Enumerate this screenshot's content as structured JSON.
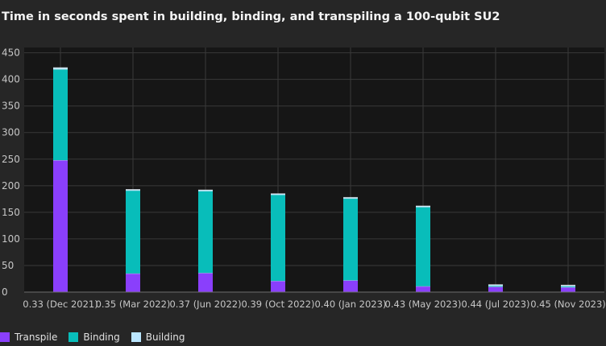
{
  "chart_data": {
    "type": "bar",
    "stacked": true,
    "title": "Time in seconds spent in building, binding, and transpiling a 100-qubit SU2",
    "xlabel": "",
    "ylabel": "",
    "ylim": [
      0,
      460
    ],
    "yticks": [
      0,
      50,
      100,
      150,
      200,
      250,
      300,
      350,
      400,
      450
    ],
    "categories": [
      "0.33 (Dec 2021)",
      "0.35 (Mar 2022)",
      "0.37 (Jun 2022)",
      "0.39 (Oct 2022)",
      "0.40 (Jan 2023)",
      "0.43 (May 2023)",
      "0.44 (Jul 2023)",
      "0.45 (Nov 2023)"
    ],
    "series": [
      {
        "name": "Transpile",
        "color": "#8a3ffc",
        "values": [
          248,
          35,
          36,
          21,
          22,
          11,
          10,
          9
        ]
      },
      {
        "name": "Binding",
        "color": "#08bdba",
        "values": [
          171,
          156,
          154,
          162,
          154,
          149,
          2,
          2
        ]
      },
      {
        "name": "Building",
        "color": "#bae6ff",
        "values": [
          3,
          2,
          2,
          2,
          2,
          2,
          2,
          2
        ]
      }
    ]
  }
}
